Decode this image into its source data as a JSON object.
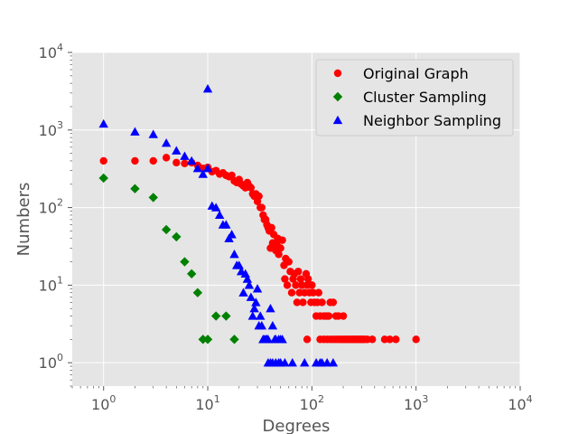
{
  "chart_data": {
    "type": "scatter",
    "title": "",
    "xlabel": "Degrees",
    "ylabel": "Numbers",
    "xscale": "log",
    "yscale": "log",
    "xlim": [
      0.5,
      10000
    ],
    "ylim": [
      0.5,
      10000
    ],
    "x_ticks": [
      1,
      10,
      100,
      1000,
      10000
    ],
    "x_tick_labels": [
      {
        "base": "10",
        "exp": "0"
      },
      {
        "base": "10",
        "exp": "1"
      },
      {
        "base": "10",
        "exp": "2"
      },
      {
        "base": "10",
        "exp": "3"
      },
      {
        "base": "10",
        "exp": "4"
      }
    ],
    "y_ticks": [
      1,
      10,
      100,
      1000,
      10000
    ],
    "y_tick_labels": [
      {
        "base": "10",
        "exp": "0"
      },
      {
        "base": "10",
        "exp": "1"
      },
      {
        "base": "10",
        "exp": "2"
      },
      {
        "base": "10",
        "exp": "3"
      },
      {
        "base": "10",
        "exp": "4"
      }
    ],
    "grid": true,
    "legend_position": "top-right",
    "series": [
      {
        "name": "Original Graph",
        "marker": "circle",
        "color": "#ff0000",
        "points": [
          [
            1,
            400
          ],
          [
            2,
            400
          ],
          [
            3,
            400
          ],
          [
            4,
            440
          ],
          [
            5,
            380
          ],
          [
            6,
            370
          ],
          [
            7,
            380
          ],
          [
            8,
            350
          ],
          [
            9,
            320
          ],
          [
            10,
            330
          ],
          [
            11,
            290
          ],
          [
            12,
            300
          ],
          [
            13,
            270
          ],
          [
            14,
            280
          ],
          [
            15,
            260
          ],
          [
            16,
            250
          ],
          [
            17,
            260
          ],
          [
            18,
            220
          ],
          [
            19,
            210
          ],
          [
            20,
            230
          ],
          [
            21,
            200
          ],
          [
            22,
            190
          ],
          [
            23,
            180
          ],
          [
            24,
            210
          ],
          [
            25,
            190
          ],
          [
            26,
            180
          ],
          [
            27,
            150
          ],
          [
            28,
            140
          ],
          [
            29,
            150
          ],
          [
            30,
            120
          ],
          [
            31,
            140
          ],
          [
            32,
            100
          ],
          [
            33,
            100
          ],
          [
            34,
            80
          ],
          [
            35,
            70
          ],
          [
            36,
            70
          ],
          [
            37,
            60
          ],
          [
            38,
            55
          ],
          [
            39,
            50
          ],
          [
            40,
            30
          ],
          [
            41,
            55
          ],
          [
            42,
            35
          ],
          [
            43,
            45
          ],
          [
            44,
            30
          ],
          [
            45,
            28
          ],
          [
            46,
            35
          ],
          [
            47,
            40
          ],
          [
            48,
            25
          ],
          [
            49,
            30
          ],
          [
            50,
            30
          ],
          [
            52,
            38
          ],
          [
            54,
            18
          ],
          [
            55,
            12
          ],
          [
            56,
            22
          ],
          [
            58,
            10
          ],
          [
            60,
            20
          ],
          [
            62,
            15
          ],
          [
            64,
            8
          ],
          [
            66,
            12
          ],
          [
            68,
            14
          ],
          [
            70,
            10
          ],
          [
            72,
            6
          ],
          [
            74,
            15
          ],
          [
            76,
            8
          ],
          [
            78,
            12
          ],
          [
            80,
            10
          ],
          [
            82,
            6
          ],
          [
            85,
            8
          ],
          [
            88,
            14
          ],
          [
            90,
            10
          ],
          [
            92,
            12
          ],
          [
            95,
            8
          ],
          [
            98,
            6
          ],
          [
            100,
            10
          ],
          [
            103,
            8
          ],
          [
            106,
            6
          ],
          [
            110,
            4
          ],
          [
            113,
            6
          ],
          [
            116,
            8
          ],
          [
            120,
            4
          ],
          [
            125,
            6
          ],
          [
            130,
            4
          ],
          [
            135,
            4
          ],
          [
            140,
            4
          ],
          [
            145,
            4
          ],
          [
            150,
            6
          ],
          [
            160,
            6
          ],
          [
            170,
            4
          ],
          [
            180,
            4
          ],
          [
            200,
            4
          ],
          [
            90,
            2
          ],
          [
            120,
            2
          ],
          [
            130,
            2
          ],
          [
            140,
            2
          ],
          [
            150,
            2
          ],
          [
            160,
            2
          ],
          [
            170,
            2
          ],
          [
            180,
            2
          ],
          [
            190,
            2
          ],
          [
            200,
            2
          ],
          [
            210,
            2
          ],
          [
            220,
            2
          ],
          [
            230,
            2
          ],
          [
            240,
            2
          ],
          [
            250,
            2
          ],
          [
            260,
            2
          ],
          [
            270,
            2
          ],
          [
            280,
            2
          ],
          [
            290,
            2
          ],
          [
            300,
            2
          ],
          [
            310,
            2
          ],
          [
            320,
            2
          ],
          [
            340,
            2
          ],
          [
            380,
            2
          ],
          [
            500,
            2
          ],
          [
            560,
            2
          ],
          [
            640,
            2
          ],
          [
            1000,
            2
          ]
        ]
      },
      {
        "name": "Cluster Sampling",
        "marker": "diamond",
        "color": "#008000",
        "points": [
          [
            1,
            240
          ],
          [
            2,
            175
          ],
          [
            3,
            135
          ],
          [
            4,
            52
          ],
          [
            5,
            42
          ],
          [
            6,
            20
          ],
          [
            7,
            14
          ],
          [
            8,
            8
          ],
          [
            9,
            2
          ],
          [
            10,
            2
          ],
          [
            12,
            4
          ],
          [
            15,
            4
          ],
          [
            18,
            2
          ]
        ]
      },
      {
        "name": "Neighbor Sampling",
        "marker": "triangle",
        "color": "#0000ff",
        "points": [
          [
            1,
            1200
          ],
          [
            2,
            950
          ],
          [
            3,
            880
          ],
          [
            4,
            680
          ],
          [
            5,
            540
          ],
          [
            6,
            460
          ],
          [
            7,
            400
          ],
          [
            8,
            320
          ],
          [
            9,
            270
          ],
          [
            10,
            3400
          ],
          [
            10,
            320
          ],
          [
            11,
            105
          ],
          [
            12,
            100
          ],
          [
            13,
            80
          ],
          [
            14,
            60
          ],
          [
            15,
            60
          ],
          [
            16,
            40
          ],
          [
            17,
            45
          ],
          [
            18,
            25
          ],
          [
            19,
            18
          ],
          [
            20,
            18
          ],
          [
            21,
            15
          ],
          [
            22,
            8
          ],
          [
            23,
            14
          ],
          [
            24,
            12
          ],
          [
            25,
            10
          ],
          [
            26,
            7
          ],
          [
            27,
            4
          ],
          [
            28,
            5
          ],
          [
            29,
            6
          ],
          [
            30,
            9
          ],
          [
            31,
            3
          ],
          [
            32,
            4
          ],
          [
            33,
            3
          ],
          [
            34,
            2
          ],
          [
            35,
            2
          ],
          [
            36,
            2
          ],
          [
            37,
            2
          ],
          [
            38,
            2
          ],
          [
            40,
            5
          ],
          [
            42,
            3
          ],
          [
            44,
            2
          ],
          [
            45,
            2
          ],
          [
            48,
            2
          ],
          [
            50,
            2
          ],
          [
            52,
            2
          ],
          [
            38,
            1
          ],
          [
            40,
            1
          ],
          [
            42,
            1
          ],
          [
            45,
            1
          ],
          [
            48,
            1
          ],
          [
            50,
            1
          ],
          [
            55,
            1
          ],
          [
            65,
            1
          ],
          [
            85,
            1
          ],
          [
            110,
            1
          ],
          [
            120,
            1
          ],
          [
            125,
            1
          ],
          [
            140,
            1
          ],
          [
            160,
            1
          ]
        ]
      }
    ]
  }
}
